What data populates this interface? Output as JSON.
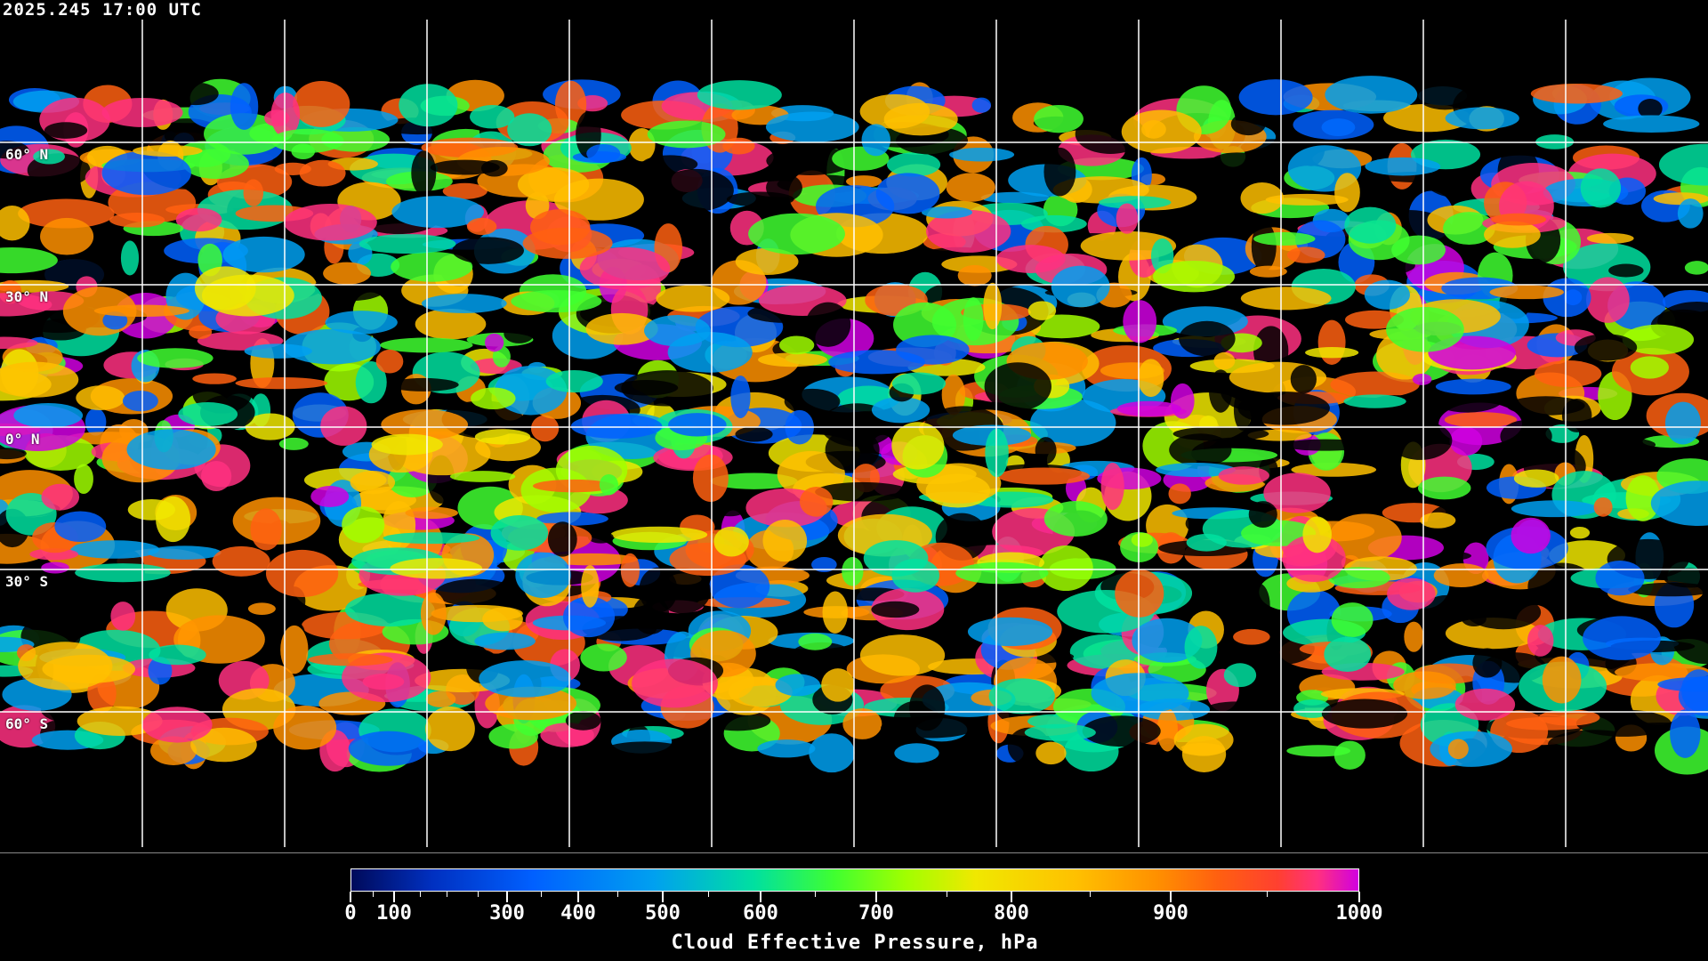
{
  "header": {
    "timestamp": "2025.245 17:00 UTC"
  },
  "map": {
    "projection": "equirectangular",
    "background": "#000000",
    "grid_color": "#ffffff",
    "longitude_grid_spacing_deg": 30,
    "latitude_grid_spacing_deg": 30,
    "lat_labels": [
      "60° N",
      "30° N",
      "0° N",
      "30° S",
      "60° S"
    ]
  },
  "colorbar": {
    "title": "Cloud Effective Pressure, hPa",
    "min": 0,
    "max": 1000,
    "tick_labels": [
      "0",
      "100",
      "300",
      "400",
      "500",
      "600",
      "700",
      "800",
      "900",
      "1000"
    ],
    "colors": [
      "#000a5a",
      "#0060ff",
      "#00a0f0",
      "#00e0a0",
      "#40ff30",
      "#a0ff00",
      "#f0e800",
      "#ffc000",
      "#ff9000",
      "#ff6010",
      "#ff3080",
      "#d000e0"
    ]
  }
}
